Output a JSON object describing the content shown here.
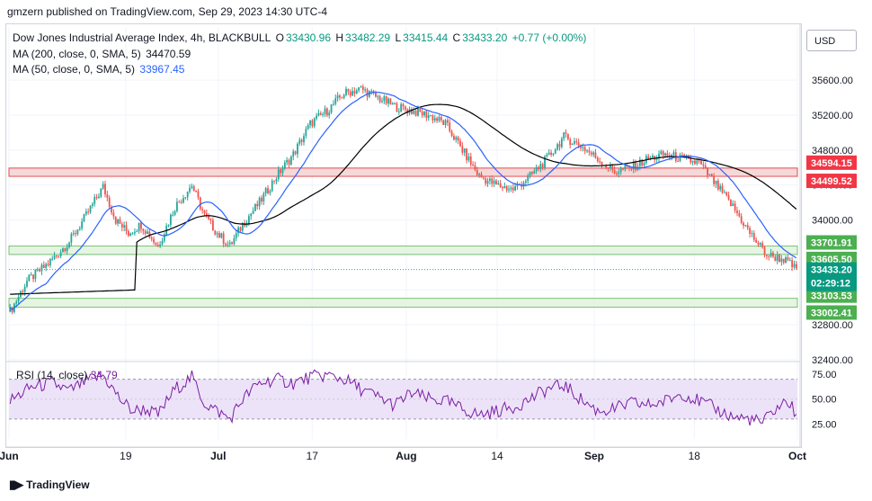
{
  "header": {
    "publisher_line": "gmzern published on TradingView.com, Sep 29, 2023 14:30 UTC-4"
  },
  "legend": {
    "title": "Dow Jones Industrial Average Index, 4h, BLACKBULL",
    "o_label": "O",
    "o_value": "33430.96",
    "h_label": "H",
    "h_value": "33482.29",
    "l_label": "L",
    "l_value": "33415.44",
    "c_label": "C",
    "c_value": "33433.20",
    "change": "+0.77 (+0.00%)",
    "ma200_label": "MA (200, close, 0, SMA, 5)",
    "ma200_value": "34470.59",
    "ma50_label": "MA (50, close, 0, SMA, 5)",
    "ma50_value": "33967.45"
  },
  "currency_button": "USD",
  "footer": {
    "brand": "TradingView"
  },
  "colors": {
    "up": "#26a69a",
    "down": "#ef5350",
    "ma200": "#000000",
    "ma50": "#2962ff",
    "resistance_fill": "#f7d4d4",
    "resistance_line": "#e0393e",
    "support_fill": "#e3f4df",
    "support_line": "#6dbd6a",
    "rsi_line": "#7b1fa2",
    "rsi_band": "#ede3f9",
    "badge_red": "#f23645",
    "badge_green": "#4caf50",
    "badge_dark": "#131722"
  },
  "chart_data": [
    {
      "type": "candlestick",
      "title": "Dow Jones Industrial Average Index, 4h, BLACKBULL",
      "ylim": [
        32400,
        35900
      ],
      "y_ticks": [
        "32400.00",
        "32800.00",
        "33200.00",
        "33600.00",
        "34000.00",
        "34400.00",
        "34800.00",
        "35200.00",
        "35600.00"
      ],
      "x_ticks": [
        "Jun",
        "19",
        "Jul",
        "17",
        "Aug",
        "14",
        "Sep",
        "18",
        "Oct"
      ],
      "trend_anchors_close": [
        [
          0,
          32950
        ],
        [
          8,
          33300
        ],
        [
          18,
          33500
        ],
        [
          28,
          33750
        ],
        [
          36,
          34050
        ],
        [
          44,
          34380
        ],
        [
          50,
          34000
        ],
        [
          56,
          33850
        ],
        [
          62,
          33950
        ],
        [
          70,
          33700
        ],
        [
          78,
          34150
        ],
        [
          86,
          34400
        ],
        [
          92,
          34050
        ],
        [
          98,
          33850
        ],
        [
          104,
          33700
        ],
        [
          110,
          33950
        ],
        [
          118,
          34200
        ],
        [
          126,
          34500
        ],
        [
          134,
          34750
        ],
        [
          142,
          35100
        ],
        [
          150,
          35250
        ],
        [
          158,
          35450
        ],
        [
          166,
          35500
        ],
        [
          174,
          35400
        ],
        [
          182,
          35300
        ],
        [
          190,
          35250
        ],
        [
          198,
          35200
        ],
        [
          206,
          35100
        ],
        [
          214,
          34800
        ],
        [
          222,
          34500
        ],
        [
          230,
          34400
        ],
        [
          238,
          34350
        ],
        [
          246,
          34500
        ],
        [
          254,
          34700
        ],
        [
          262,
          34950
        ],
        [
          270,
          34850
        ],
        [
          278,
          34700
        ],
        [
          286,
          34550
        ],
        [
          294,
          34600
        ],
        [
          302,
          34700
        ],
        [
          310,
          34750
        ],
        [
          318,
          34700
        ],
        [
          326,
          34650
        ],
        [
          334,
          34400
        ],
        [
          342,
          34150
        ],
        [
          350,
          33850
        ],
        [
          358,
          33600
        ],
        [
          366,
          33550
        ],
        [
          372,
          33433
        ]
      ],
      "price_levels": {
        "resistance_top": {
          "value": 34594.15,
          "label": "34594.15"
        },
        "resistance_bottom": {
          "value": 34499.52,
          "label": "34499.52"
        },
        "support_upper_top": {
          "value": 33701.91,
          "label": "33701.91"
        },
        "support_upper_bottom": {
          "value": 33605.5,
          "label": "33605.50"
        },
        "support_lower_top": {
          "value": 33103.53,
          "label": "33103.53"
        },
        "support_lower_bottom": {
          "value": 33002.41,
          "label": "33002.41"
        },
        "last_price": {
          "value": 33433.2,
          "label": "33433.20",
          "countdown": "02:29:12"
        }
      }
    },
    {
      "type": "line",
      "name": "RSI (14, close)",
      "legend_label": "RSI (14, close)",
      "value_label": "34.79",
      "ylim": [
        10,
        85
      ],
      "y_ticks": [
        "25.00",
        "50.00",
        "75.00"
      ],
      "band": [
        30,
        70
      ],
      "anchors": [
        [
          0,
          48
        ],
        [
          10,
          62
        ],
        [
          20,
          66
        ],
        [
          28,
          58
        ],
        [
          36,
          68
        ],
        [
          44,
          74
        ],
        [
          52,
          50
        ],
        [
          58,
          38
        ],
        [
          64,
          40
        ],
        [
          70,
          34
        ],
        [
          78,
          60
        ],
        [
          86,
          72
        ],
        [
          92,
          46
        ],
        [
          98,
          38
        ],
        [
          104,
          30
        ],
        [
          110,
          50
        ],
        [
          118,
          66
        ],
        [
          126,
          70
        ],
        [
          134,
          66
        ],
        [
          142,
          72
        ],
        [
          150,
          74
        ],
        [
          158,
          70
        ],
        [
          166,
          60
        ],
        [
          174,
          52
        ],
        [
          182,
          44
        ],
        [
          190,
          56
        ],
        [
          198,
          50
        ],
        [
          206,
          48
        ],
        [
          214,
          40
        ],
        [
          222,
          34
        ],
        [
          230,
          38
        ],
        [
          238,
          42
        ],
        [
          246,
          50
        ],
        [
          254,
          60
        ],
        [
          262,
          64
        ],
        [
          270,
          50
        ],
        [
          278,
          38
        ],
        [
          286,
          40
        ],
        [
          294,
          46
        ],
        [
          302,
          44
        ],
        [
          310,
          48
        ],
        [
          318,
          56
        ],
        [
          326,
          48
        ],
        [
          334,
          40
        ],
        [
          342,
          32
        ],
        [
          350,
          30
        ],
        [
          356,
          26
        ],
        [
          362,
          40
        ],
        [
          368,
          48
        ],
        [
          372,
          35
        ]
      ]
    }
  ]
}
